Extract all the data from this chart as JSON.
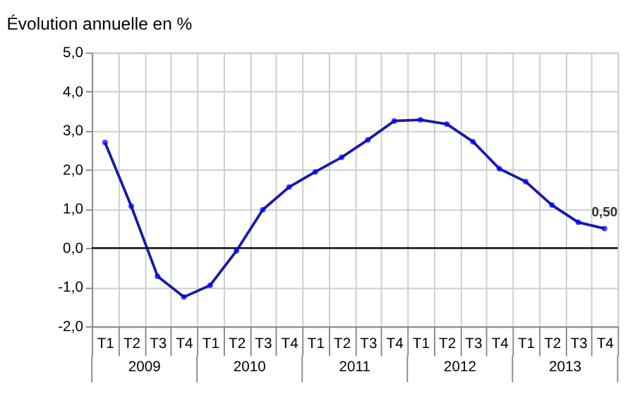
{
  "chart_data": {
    "type": "line",
    "title": "Évolution annuelle en %",
    "categories": [
      "T1",
      "T2",
      "T3",
      "T4",
      "T1",
      "T2",
      "T3",
      "T4",
      "T1",
      "T2",
      "T3",
      "T4",
      "T1",
      "T2",
      "T3",
      "T4",
      "T1",
      "T2",
      "T3",
      "T4"
    ],
    "series": [
      {
        "color": "#1a1aa6",
        "values": [
          2.7,
          1.07,
          -0.72,
          -1.25,
          -0.95,
          -0.07,
          0.98,
          1.56,
          1.95,
          2.32,
          2.77,
          3.25,
          3.28,
          3.17,
          2.72,
          2.03,
          1.7,
          1.1,
          0.66,
          0.5
        ],
        "value_labels": [
          null,
          null,
          null,
          null,
          null,
          null,
          null,
          null,
          null,
          null,
          null,
          null,
          null,
          null,
          null,
          null,
          null,
          null,
          null,
          "0,50"
        ]
      }
    ],
    "annotations": [
      "2009",
      "2010",
      "2011",
      "2012",
      "2013"
    ],
    "ylim": [
      -2,
      5
    ],
    "yticks": [
      {
        "value": -2,
        "label": "-2,0"
      },
      {
        "value": -1,
        "label": "-1,0"
      },
      {
        "value": 0,
        "label": "0,0"
      },
      {
        "value": 1,
        "label": "1,0"
      },
      {
        "value": 2,
        "label": "2,0"
      },
      {
        "value": 3,
        "label": "3,0"
      },
      {
        "value": 4,
        "label": "4,0"
      },
      {
        "value": 5,
        "label": "5,0"
      }
    ],
    "ref_lines": [
      {
        "axis": "y",
        "value": 0,
        "color": "#000000"
      }
    ],
    "grid": true,
    "marker": "circle"
  }
}
